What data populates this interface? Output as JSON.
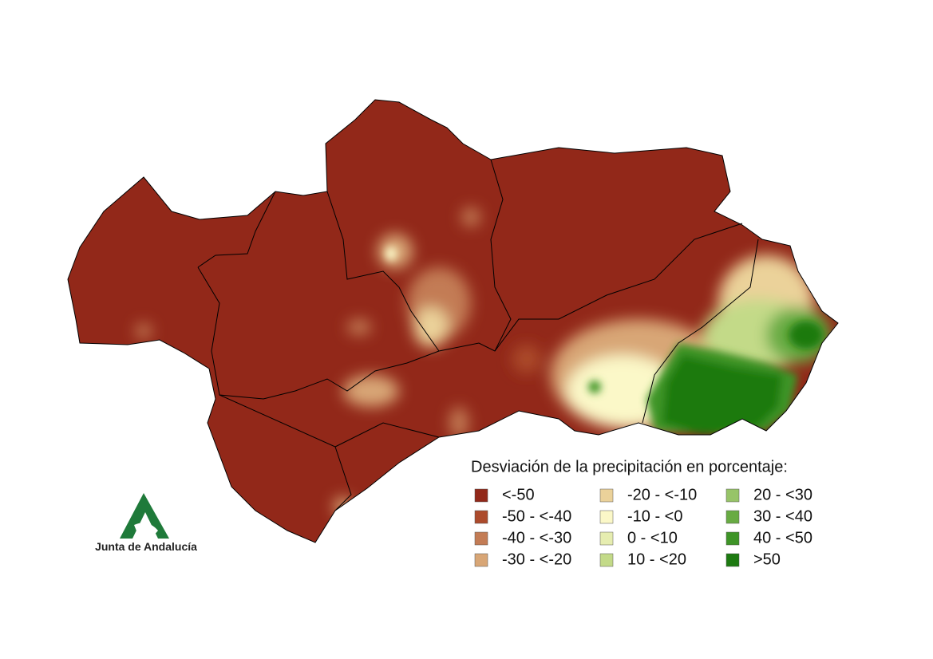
{
  "legend": {
    "title": "Desviación de la precipitación en porcentaje:",
    "items": [
      {
        "label": "<-50",
        "color": "#922819"
      },
      {
        "label": "-50 - <-40",
        "color": "#ac4b2c"
      },
      {
        "label": "-40 - <-30",
        "color": "#c37c55"
      },
      {
        "label": "-30 - <-20",
        "color": "#d8a676"
      },
      {
        "label": "-20 - <-10",
        "color": "#ebd29a"
      },
      {
        "label": "-10 - <0",
        "color": "#fbf8c8"
      },
      {
        "label": "0 - <10",
        "color": "#e6edb0"
      },
      {
        "label": "10 - <20",
        "color": "#c3da88"
      },
      {
        "label": "20 - <30",
        "color": "#97c468"
      },
      {
        "label": "30 - <40",
        "color": "#68ab43"
      },
      {
        "label": "40 - <50",
        "color": "#3e9427"
      },
      {
        "label": ">50",
        "color": "#1d7a11"
      }
    ]
  },
  "logo": {
    "text": "Junta de Andalucía"
  }
}
